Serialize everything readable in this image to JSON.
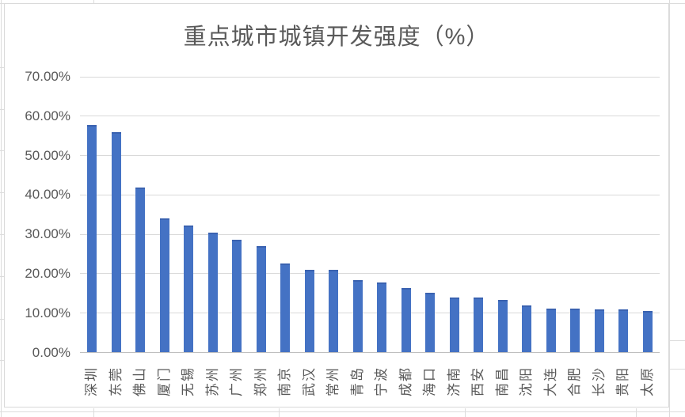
{
  "chart_data": {
    "type": "bar",
    "title": "重点城市城镇开发强度（%）",
    "xlabel": "",
    "ylabel": "",
    "categories": [
      "深圳",
      "东莞",
      "佛山",
      "厦门",
      "无锡",
      "苏州",
      "广州",
      "郑州",
      "南京",
      "武汉",
      "常州",
      "青岛",
      "宁波",
      "成都",
      "海口",
      "济南",
      "西安",
      "南昌",
      "沈阳",
      "大连",
      "合肥",
      "长沙",
      "贵阳",
      "太原"
    ],
    "values": [
      57.7,
      56.0,
      41.8,
      34.1,
      32.2,
      30.4,
      28.6,
      27.1,
      22.5,
      21.0,
      21.0,
      18.4,
      17.7,
      16.4,
      15.2,
      14.0,
      14.0,
      13.4,
      12.0,
      11.2,
      11.1,
      10.9,
      10.9,
      10.5
    ],
    "ylim": [
      0,
      70
    ],
    "y_tick_values": [
      70,
      60,
      50,
      40,
      30,
      20,
      10,
      0
    ],
    "y_tick_labels": [
      "70.00%",
      "60.00%",
      "50.00%",
      "40.00%",
      "30.00%",
      "20.00%",
      "10.00%",
      "0.00%"
    ],
    "grid": true,
    "legend": false
  },
  "colors": {
    "bar_fill": "#4472C4",
    "bar_top_edge": "#3a62b0",
    "gridline": "#d9d9d9",
    "axis_line": "#bfbfbf",
    "label_text": "#595959",
    "title_text": "#595959",
    "chart_border": "#d9d9d9",
    "cell_line": "#dcdcdc"
  }
}
